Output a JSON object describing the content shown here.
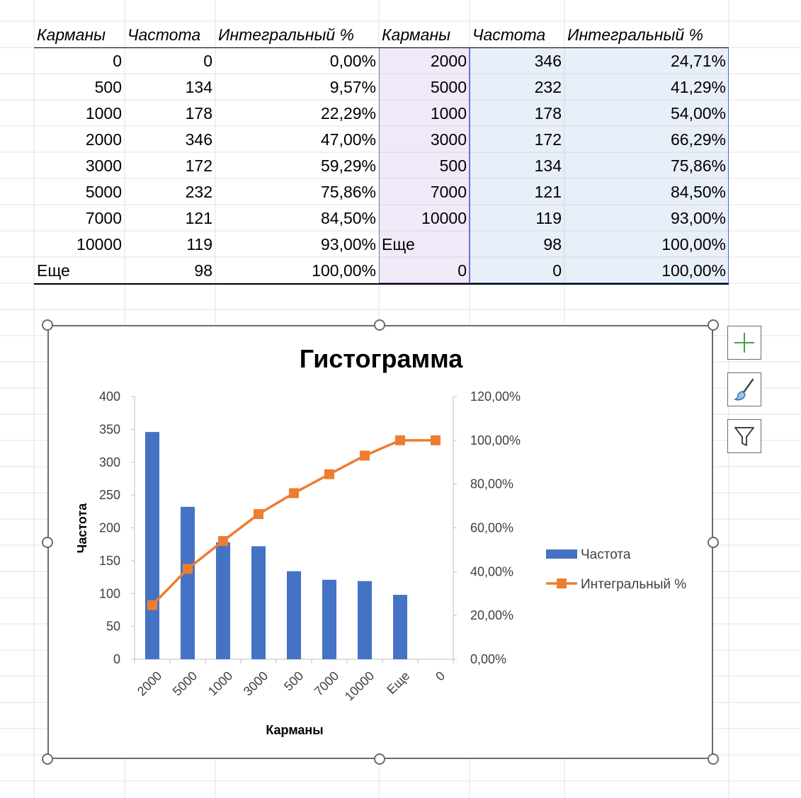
{
  "table": {
    "headers": [
      "Карманы",
      "Частота",
      "Интегральный %",
      "Карманы",
      "Частота",
      "Интегральный %"
    ],
    "rows": [
      [
        "0",
        "0",
        "0,00%",
        "2000",
        "346",
        "24,71%"
      ],
      [
        "500",
        "134",
        "9,57%",
        "5000",
        "232",
        "41,29%"
      ],
      [
        "1000",
        "178",
        "22,29%",
        "1000",
        "178",
        "54,00%"
      ],
      [
        "2000",
        "346",
        "47,00%",
        "3000",
        "172",
        "66,29%"
      ],
      [
        "3000",
        "172",
        "59,29%",
        "500",
        "134",
        "75,86%"
      ],
      [
        "5000",
        "232",
        "75,86%",
        "7000",
        "121",
        "84,50%"
      ],
      [
        "7000",
        "121",
        "84,50%",
        "10000",
        "119",
        "93,00%"
      ],
      [
        "10000",
        "119",
        "93,00%",
        "Еще",
        "98",
        "100,00%"
      ],
      [
        "Еще",
        "98",
        "100,00%",
        "0",
        "0",
        "100,00%"
      ]
    ]
  },
  "chart_data": {
    "type": "bar",
    "title": "Гистограмма",
    "xlabel": "Карманы",
    "ylabel": "Частота",
    "categories": [
      "2000",
      "5000",
      "1000",
      "3000",
      "500",
      "7000",
      "10000",
      "Еще",
      "0"
    ],
    "series": [
      {
        "name": "Частота",
        "type": "bar",
        "axis": "primary",
        "values": [
          346,
          232,
          178,
          172,
          134,
          121,
          119,
          98,
          0
        ]
      },
      {
        "name": "Интегральный %",
        "type": "line",
        "axis": "secondary",
        "values": [
          24.71,
          41.29,
          54.0,
          66.29,
          75.86,
          84.5,
          93.0,
          100.0,
          100.0
        ]
      }
    ],
    "ylim": [
      0,
      400
    ],
    "yticks": [
      "0",
      "50",
      "100",
      "150",
      "200",
      "250",
      "300",
      "350",
      "400"
    ],
    "y2lim": [
      0,
      120
    ],
    "y2ticks": [
      "0,00%",
      "20,00%",
      "40,00%",
      "60,00%",
      "80,00%",
      "100,00%",
      "120,00%"
    ],
    "legend_position": "right",
    "grid": false,
    "colors": {
      "bar": "#4472c4",
      "line": "#ed7d31"
    }
  },
  "side_buttons": [
    {
      "icon": "chart-elements-plus-icon"
    },
    {
      "icon": "chart-styles-brush-icon"
    },
    {
      "icon": "chart-filters-funnel-icon"
    }
  ]
}
